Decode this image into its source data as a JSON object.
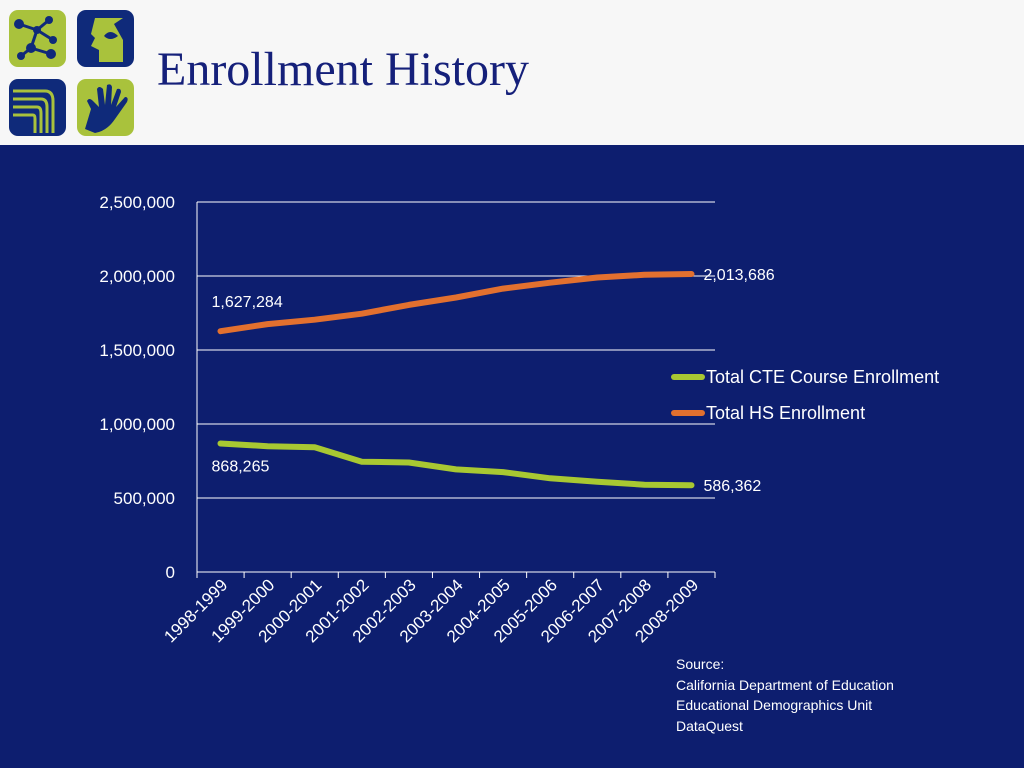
{
  "slide": {
    "title": "Enrollment History",
    "logo_color_green": "#a9c23c",
    "logo_color_blue": "#0f2a7a",
    "background_color": "#0d1e6f"
  },
  "chart_data": {
    "type": "line",
    "categories": [
      "1998-1999",
      "1999-2000",
      "2000-2001",
      "2001-2002",
      "2002-2003",
      "2003-2004",
      "2004-2005",
      "2005-2006",
      "2006-2007",
      "2007-2008",
      "2008-2009"
    ],
    "series": [
      {
        "name": "Total CTE Course Enrollment",
        "color": "#a8c832",
        "values": [
          868265,
          850000,
          843000,
          745000,
          740000,
          693000,
          675000,
          633000,
          610000,
          590000,
          586362
        ],
        "labels": {
          "first": "868,265",
          "last": "586,362"
        }
      },
      {
        "name": "Total HS Enrollment",
        "color": "#e2702f",
        "values": [
          1627284,
          1675000,
          1705000,
          1745000,
          1805000,
          1855000,
          1915000,
          1955000,
          1990000,
          2008000,
          2013686
        ],
        "labels": {
          "first": "1,627,284",
          "last": "2,013,686"
        }
      }
    ],
    "y_ticks": [
      "0",
      "500,000",
      "1,000,000",
      "1,500,000",
      "2,000,000",
      "2,500,000"
    ],
    "ylim": [
      0,
      2500000
    ],
    "grid": true,
    "legend_position": "right",
    "source_lines": [
      "Source:",
      "California Department of Education",
      "Educational Demographics Unit",
      "DataQuest"
    ]
  }
}
